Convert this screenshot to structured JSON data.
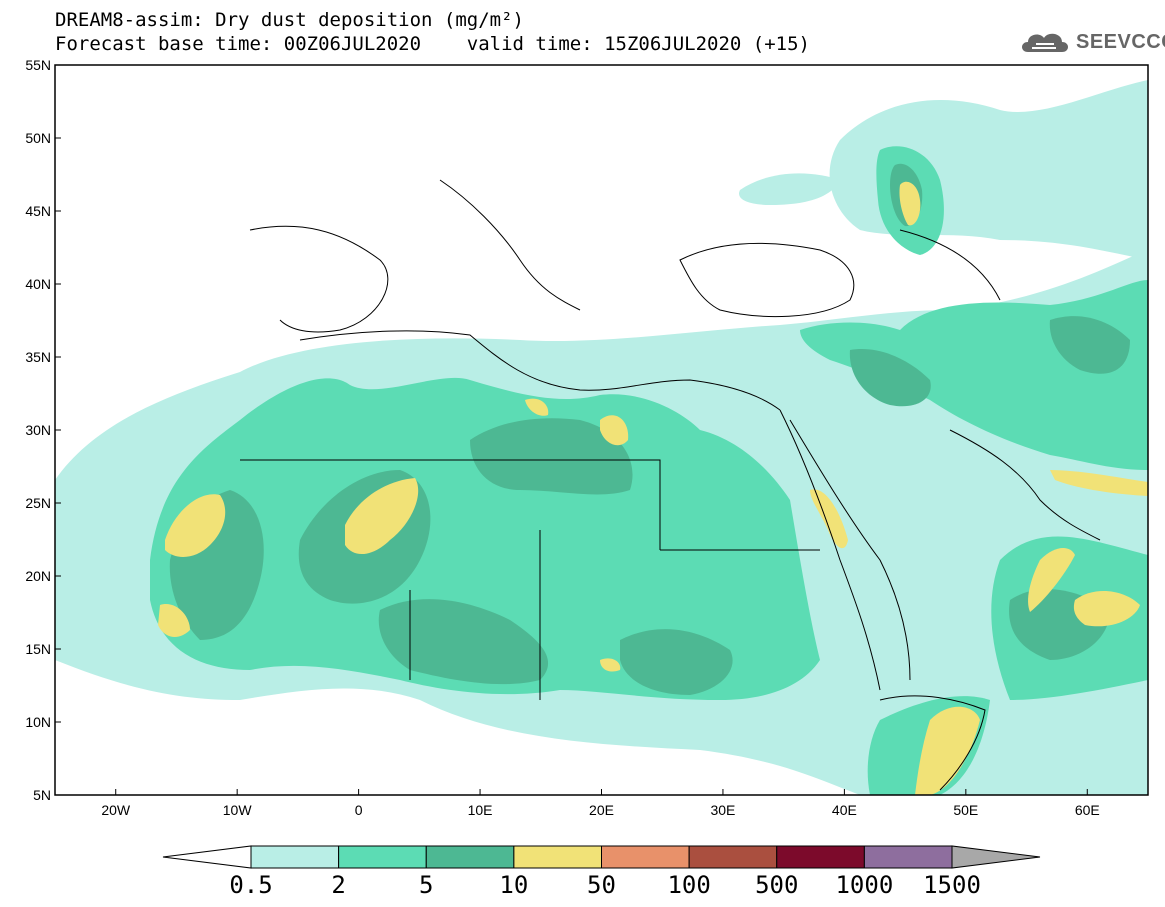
{
  "header": {
    "line1": "DREAM8-assim: Dry dust deposition (mg/m²)",
    "line2": "Forecast base time: 00Z06JUL2020    valid time: 15Z06JUL2020 (+15)"
  },
  "logo": {
    "text": "SEEVCCC",
    "icon": "cloud-icon",
    "color": "#666666"
  },
  "map": {
    "lat_range": [
      5,
      55
    ],
    "lon_range": [
      -25,
      65
    ],
    "lat_ticks": [
      "5N",
      "10N",
      "15N",
      "20N",
      "25N",
      "30N",
      "35N",
      "40N",
      "45N",
      "50N",
      "55N"
    ],
    "lon_ticks": [
      "20W",
      "10W",
      "0",
      "10E",
      "20E",
      "30E",
      "40E",
      "50E",
      "60E"
    ],
    "land_color": "#ffffff",
    "border_color": "#000000"
  },
  "legend": {
    "labels": [
      "0.5",
      "2",
      "5",
      "10",
      "50",
      "100",
      "500",
      "1000",
      "1500"
    ],
    "colors": [
      "#ffffff",
      "#b9eee6",
      "#5cdcb4",
      "#4db893",
      "#f1e277",
      "#e8916a",
      "#aa4f3f",
      "#7c0a2b",
      "#8e6e9e",
      "#a8a8a8"
    ]
  }
}
